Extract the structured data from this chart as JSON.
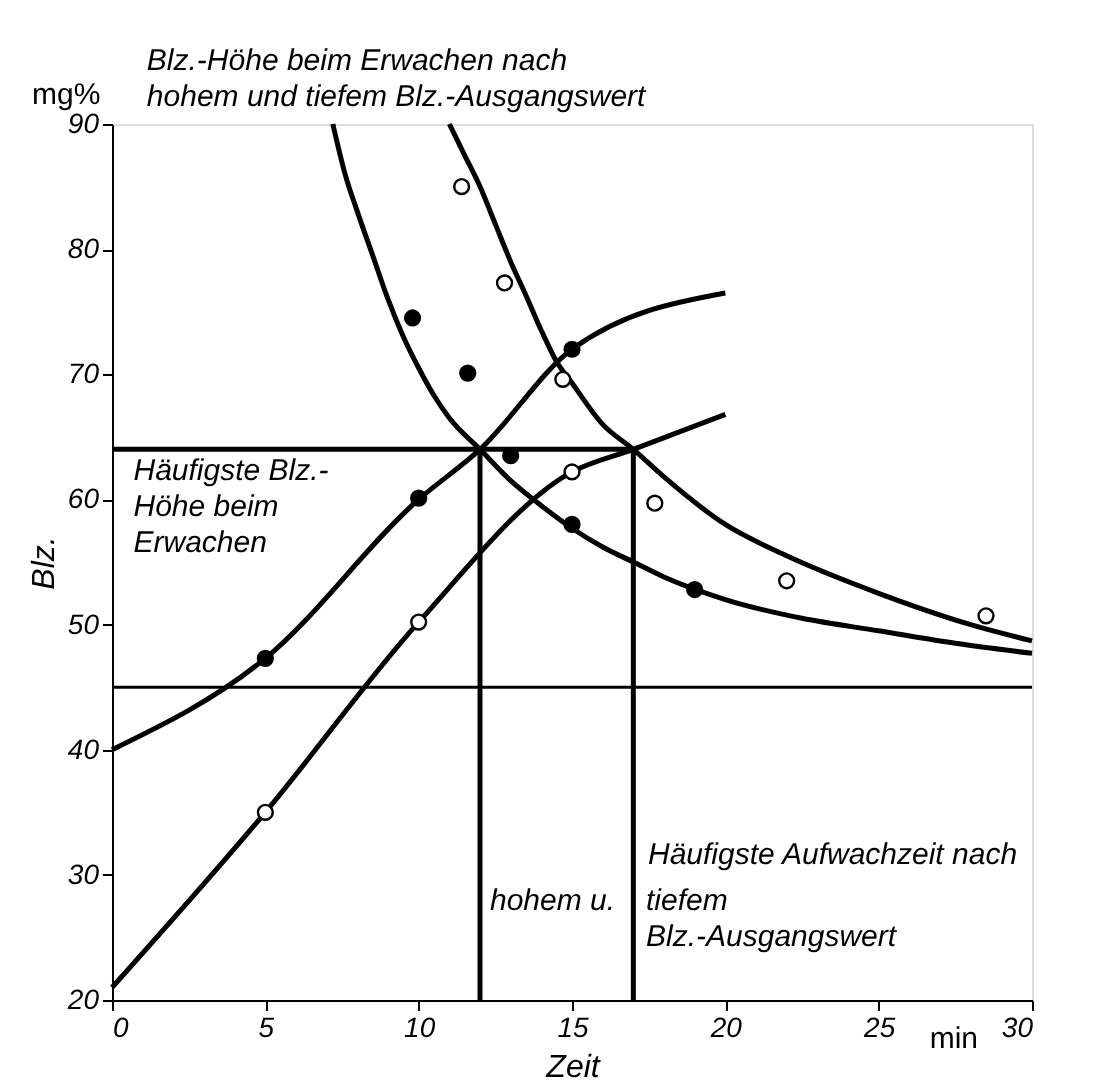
{
  "chart_data": {
    "type": "line",
    "title": "Blz.-Höhe beim Erwachen nach\nhohem und tiefem Blz.-Ausgangswert",
    "xlabel": "Zeit",
    "ylabel": "Blz.",
    "xlim": [
      0,
      30
    ],
    "ylim": [
      20,
      90
    ],
    "xticks": [
      0,
      5,
      10,
      15,
      20,
      25,
      30
    ],
    "yticks": [
      20,
      30,
      40,
      50,
      60,
      70,
      80,
      90
    ],
    "grid": false,
    "line_style": "solid",
    "series": [
      {
        "color": "#000000",
        "x": [
          0,
          5,
          10,
          12,
          15,
          20
        ],
        "values": [
          40,
          47.3,
          60,
          64,
          72,
          76.5
        ]
      },
      {
        "color": "#000000",
        "x": [
          0,
          5,
          10,
          15,
          17,
          20
        ],
        "values": [
          21,
          35,
          50.2,
          62.2,
          64,
          66.8
        ]
      },
      {
        "color": "#000000",
        "x": [
          7.2,
          7.6,
          8,
          8.5,
          9,
          9.5,
          10,
          10.5,
          11,
          12,
          13,
          14,
          15,
          16,
          17,
          18,
          20,
          22.5,
          25,
          27.5,
          30
        ],
        "values": [
          90,
          86,
          83,
          79.5,
          76,
          73,
          70.5,
          68.3,
          66.5,
          64,
          61.5,
          59.5,
          57.7,
          56.2,
          55,
          53.8,
          52,
          50.5,
          49.5,
          48.5,
          47.7
        ]
      },
      {
        "color": "#000000",
        "x": [
          11,
          11.5,
          12,
          12.5,
          13,
          13.5,
          14,
          14.5,
          15,
          16,
          17,
          18,
          20,
          22,
          25,
          28,
          30
        ],
        "values": [
          90,
          87.5,
          85,
          82,
          79,
          76.3,
          73.5,
          71,
          69.3,
          66,
          64,
          61.8,
          58,
          55.5,
          52.5,
          50,
          48.7
        ]
      },
      {
        "color": "#000000",
        "x": [
          0,
          17
        ],
        "values": [
          64,
          64
        ]
      },
      {
        "color": "#000000",
        "x": [
          12,
          12
        ],
        "values": [
          20,
          64
        ]
      },
      {
        "color": "#000000",
        "x": [
          17,
          17
        ],
        "values": [
          20,
          64
        ]
      },
      {
        "type": "scatter",
        "marker": "circle",
        "color": "#000000",
        "x": [
          5,
          10,
          9.8,
          11.6,
          13,
          15,
          15,
          19
        ],
        "values": [
          47.3,
          60.1,
          74.5,
          70.1,
          63.5,
          72,
          58,
          52.8
        ]
      },
      {
        "type": "scatter",
        "marker": "circle",
        "color": "#ffffff",
        "x": [
          5,
          10,
          11.4,
          12.8,
          14.7,
          15,
          17.7,
          22,
          28.5
        ],
        "values": [
          35,
          50.2,
          85,
          77.3,
          69.6,
          62.2,
          59.7,
          53.5,
          50.7
        ]
      }
    ],
    "ref_lines": [
      {
        "axis": "y",
        "value": 45
      }
    ],
    "annotations": [
      "mg%",
      "min",
      {
        "text": "Häufigste Blz.-\nHöhe beim\nErwachen",
        "x": 0.7,
        "y": 63.5
      },
      "Häufigste Aufwachzeit nach",
      "hohem u.",
      "tiefem\nBlz.-Ausgangswert"
    ]
  }
}
